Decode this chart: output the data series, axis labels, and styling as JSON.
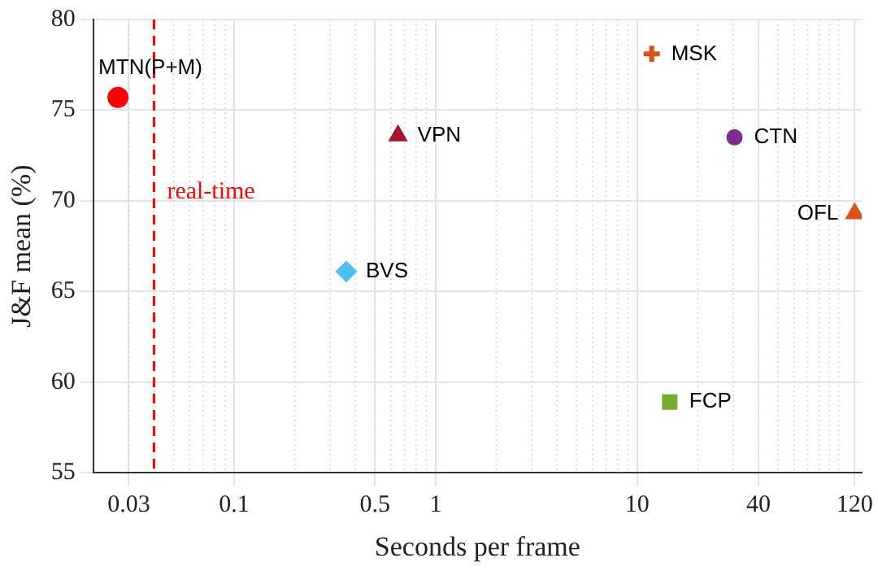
{
  "chart_data": {
    "type": "scatter",
    "xlabel": "Seconds per frame",
    "ylabel": "J&F mean (%)",
    "log": "x",
    "xlim": [
      0.02,
      130
    ],
    "xticks": [
      0.03,
      0.1,
      0.5,
      1,
      10,
      40,
      120
    ],
    "ylim": [
      55,
      80
    ],
    "yticks": [
      55,
      60,
      65,
      70,
      75,
      80
    ],
    "grid": true,
    "legend": false,
    "series": [
      {
        "name": "MTN(P+M)",
        "color": "#ff0000",
        "marker": "circle",
        "x": [
          0.0265
        ],
        "values": [
          75.7
        ]
      },
      {
        "name": "VPN",
        "color": "#a2142f",
        "marker": "triangle",
        "x": [
          0.65
        ],
        "values": [
          73.6
        ]
      },
      {
        "name": "BVS",
        "color": "#4dbeee",
        "marker": "diamond",
        "x": [
          0.36
        ],
        "values": [
          66.1
        ]
      },
      {
        "name": "MSK",
        "color": "#d95319",
        "marker": "cross",
        "x": [
          11.8
        ],
        "values": [
          78.1
        ]
      },
      {
        "name": "CTN",
        "color": "#7e2f8e",
        "marker": "circle",
        "x": [
          30.4
        ],
        "values": [
          73.5
        ]
      },
      {
        "name": "OFL",
        "color": "#d95319",
        "marker": "triangle",
        "x": [
          120
        ],
        "values": [
          69.3
        ]
      },
      {
        "name": "FCP",
        "color": "#77ac30",
        "marker": "square",
        "x": [
          14.5
        ],
        "values": [
          58.9
        ]
      }
    ],
    "ref_lines": [
      {
        "axis": "x",
        "value": 0.04,
        "label": "real-time",
        "color": "#ff0000",
        "line_style": "dashed"
      }
    ]
  }
}
